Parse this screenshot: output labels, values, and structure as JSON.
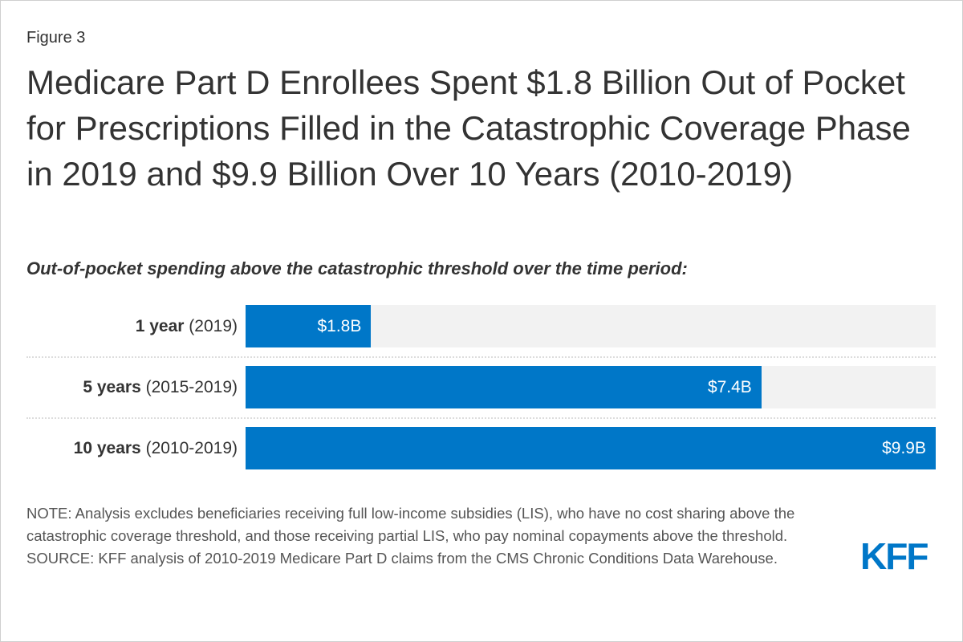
{
  "figure_label": "Figure 3",
  "title": "Medicare Part D Enrollees Spent $1.8 Billion Out of Pocket for Prescriptions Filled in the Catastrophic Coverage Phase in 2019 and $9.9 Billion Over 10 Years (2010-2019)",
  "subtitle": "Out-of-pocket spending above the catastrophic threshold over the time period:",
  "chart_data": {
    "type": "bar",
    "orientation": "horizontal",
    "categories": [
      {
        "bold": "1 year",
        "rest": "(2019)"
      },
      {
        "bold": "5 years",
        "rest": "(2015-2019)"
      },
      {
        "bold": "10 years",
        "rest": "(2010-2019)"
      }
    ],
    "values": [
      1.8,
      7.4,
      9.9
    ],
    "value_labels": [
      "$1.8B",
      "$7.4B",
      "$9.9B"
    ],
    "units": "billions USD",
    "xlim": [
      0,
      9.9
    ],
    "bar_color": "#0077c8",
    "track_color": "#f2f2f2",
    "grid": false
  },
  "note": "NOTE: Analysis excludes beneficiaries receiving full low-income subsidies (LIS), who have no cost sharing above the catastrophic coverage threshold, and those receiving partial LIS, who pay nominal copayments above the threshold.",
  "source": "SOURCE: KFF analysis of 2010-2019 Medicare Part D claims from the CMS Chronic Conditions Data Warehouse.",
  "logo": "KFF"
}
